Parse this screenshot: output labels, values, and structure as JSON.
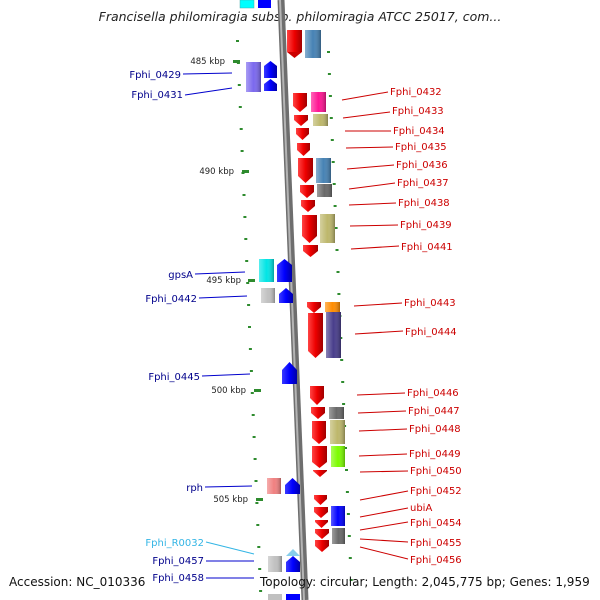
{
  "title": "Francisella philomiragia subsp. philomiragia ATCC 25017, com...",
  "footer": {
    "accession_label": "Accession:",
    "accession": "NC_010336",
    "topology_label": "Topology:",
    "topology": "circular",
    "length_label": "Length:",
    "length": "2,045,775 bp",
    "genes_label": "Genes:",
    "genes": "1,959"
  },
  "colors": {
    "backbone": "#8a8a8a",
    "forward_strand": "#0000ff",
    "reverse_strand": "#ee0000",
    "label_forward": "#00008b",
    "label_reverse": "#cc0000",
    "label_rna": "#33b5e5",
    "tick": "#2e8b2e"
  },
  "map": {
    "position_range_kbp": [
      483.5,
      508.5
    ],
    "tick_labels": [
      {
        "kbp": 485,
        "label": "485 kbp"
      },
      {
        "kbp": 490,
        "label": "490 kbp"
      },
      {
        "kbp": 495,
        "label": "495 kbp"
      },
      {
        "kbp": 500,
        "label": "500 kbp"
      },
      {
        "kbp": 505,
        "label": "505 kbp"
      }
    ]
  },
  "genes": {
    "forward": [
      {
        "name": "Fphi_0429",
        "label_color": "#00008b",
        "cog_color": "#7b68ee"
      },
      {
        "name": "Fphi_0431",
        "label_color": "#00008b",
        "cog_color": "#483d8b"
      },
      {
        "name": "gpsA",
        "label_color": "#00008b",
        "cog_color": "#00ffff"
      },
      {
        "name": "Fphi_0442",
        "label_color": "#00008b",
        "cog_color": "#c0c0c0"
      },
      {
        "name": "Fphi_0445",
        "label_color": "#00008b",
        "cog_color": ""
      },
      {
        "name": "rph",
        "label_color": "#00008b",
        "cog_color": "#f08080"
      },
      {
        "name": "Fphi_R0032",
        "label_color": "#33b5e5",
        "cog_color": "#87ceeb"
      },
      {
        "name": "Fphi_0457",
        "label_color": "#00008b",
        "cog_color": "#c0c0c0"
      },
      {
        "name": "Fphi_0458",
        "label_color": "#00008b",
        "cog_color": ""
      }
    ],
    "reverse": [
      {
        "name": "Fphi_0432",
        "label_color": "#cc0000",
        "cog_color": "#ff1493"
      },
      {
        "name": "Fphi_0433",
        "label_color": "#cc0000",
        "cog_color": "#bdb76b"
      },
      {
        "name": "Fphi_0434",
        "label_color": "#cc0000",
        "cog_color": ""
      },
      {
        "name": "Fphi_0435",
        "label_color": "#cc0000",
        "cog_color": ""
      },
      {
        "name": "Fphi_0436",
        "label_color": "#cc0000",
        "cog_color": "#4682b4"
      },
      {
        "name": "Fphi_0437",
        "label_color": "#cc0000",
        "cog_color": "#696969"
      },
      {
        "name": "Fphi_0438",
        "label_color": "#cc0000",
        "cog_color": ""
      },
      {
        "name": "Fphi_0439",
        "label_color": "#cc0000",
        "cog_color": "#bdb76b"
      },
      {
        "name": "Fphi_0441",
        "label_color": "#cc0000",
        "cog_color": ""
      },
      {
        "name": "Fphi_0443",
        "label_color": "#cc0000",
        "cog_color": "#ff8c00"
      },
      {
        "name": "Fphi_0444",
        "label_color": "#cc0000",
        "cog_color": "#483d8b"
      },
      {
        "name": "Fphi_0446",
        "label_color": "#cc0000",
        "cog_color": ""
      },
      {
        "name": "Fphi_0447",
        "label_color": "#cc0000",
        "cog_color": "#696969"
      },
      {
        "name": "Fphi_0448",
        "label_color": "#cc0000",
        "cog_color": "#bdb76b"
      },
      {
        "name": "Fphi_0449",
        "label_color": "#cc0000",
        "cog_color": "#7cfc00"
      },
      {
        "name": "Fphi_0450",
        "label_color": "#cc0000",
        "cog_color": ""
      },
      {
        "name": "Fphi_0452",
        "label_color": "#cc0000",
        "cog_color": ""
      },
      {
        "name": "ubiA",
        "label_color": "#cc0000",
        "cog_color": "#0000ff"
      },
      {
        "name": "Fphi_0454",
        "label_color": "#cc0000",
        "cog_color": ""
      },
      {
        "name": "Fphi_0455",
        "label_color": "#cc0000",
        "cog_color": "#696969"
      },
      {
        "name": "Fphi_0456",
        "label_color": "#cc0000",
        "cog_color": ""
      }
    ]
  }
}
